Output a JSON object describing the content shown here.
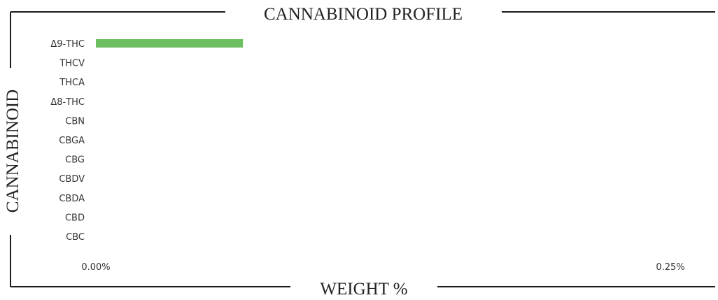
{
  "chart_data": {
    "type": "bar",
    "orientation": "horizontal",
    "title": "CANNABINOID PROFILE",
    "xlabel": "WEIGHT %",
    "ylabel": "CANNABINOID",
    "categories": [
      "Δ9-THC",
      "THCV",
      "THCA",
      "Δ8-THC",
      "CBN",
      "CBGA",
      "CBG",
      "CBDV",
      "CBDA",
      "CBD",
      "CBC"
    ],
    "values": [
      0.064,
      0,
      0,
      0,
      0,
      0,
      0,
      0,
      0,
      0,
      0
    ],
    "xlim": [
      0,
      0.25
    ],
    "xticks": [
      "0.00%",
      "0.25%"
    ],
    "grid": false,
    "bar_color": "#6bbf5e",
    "frame_color": "#1a1a1a"
  }
}
